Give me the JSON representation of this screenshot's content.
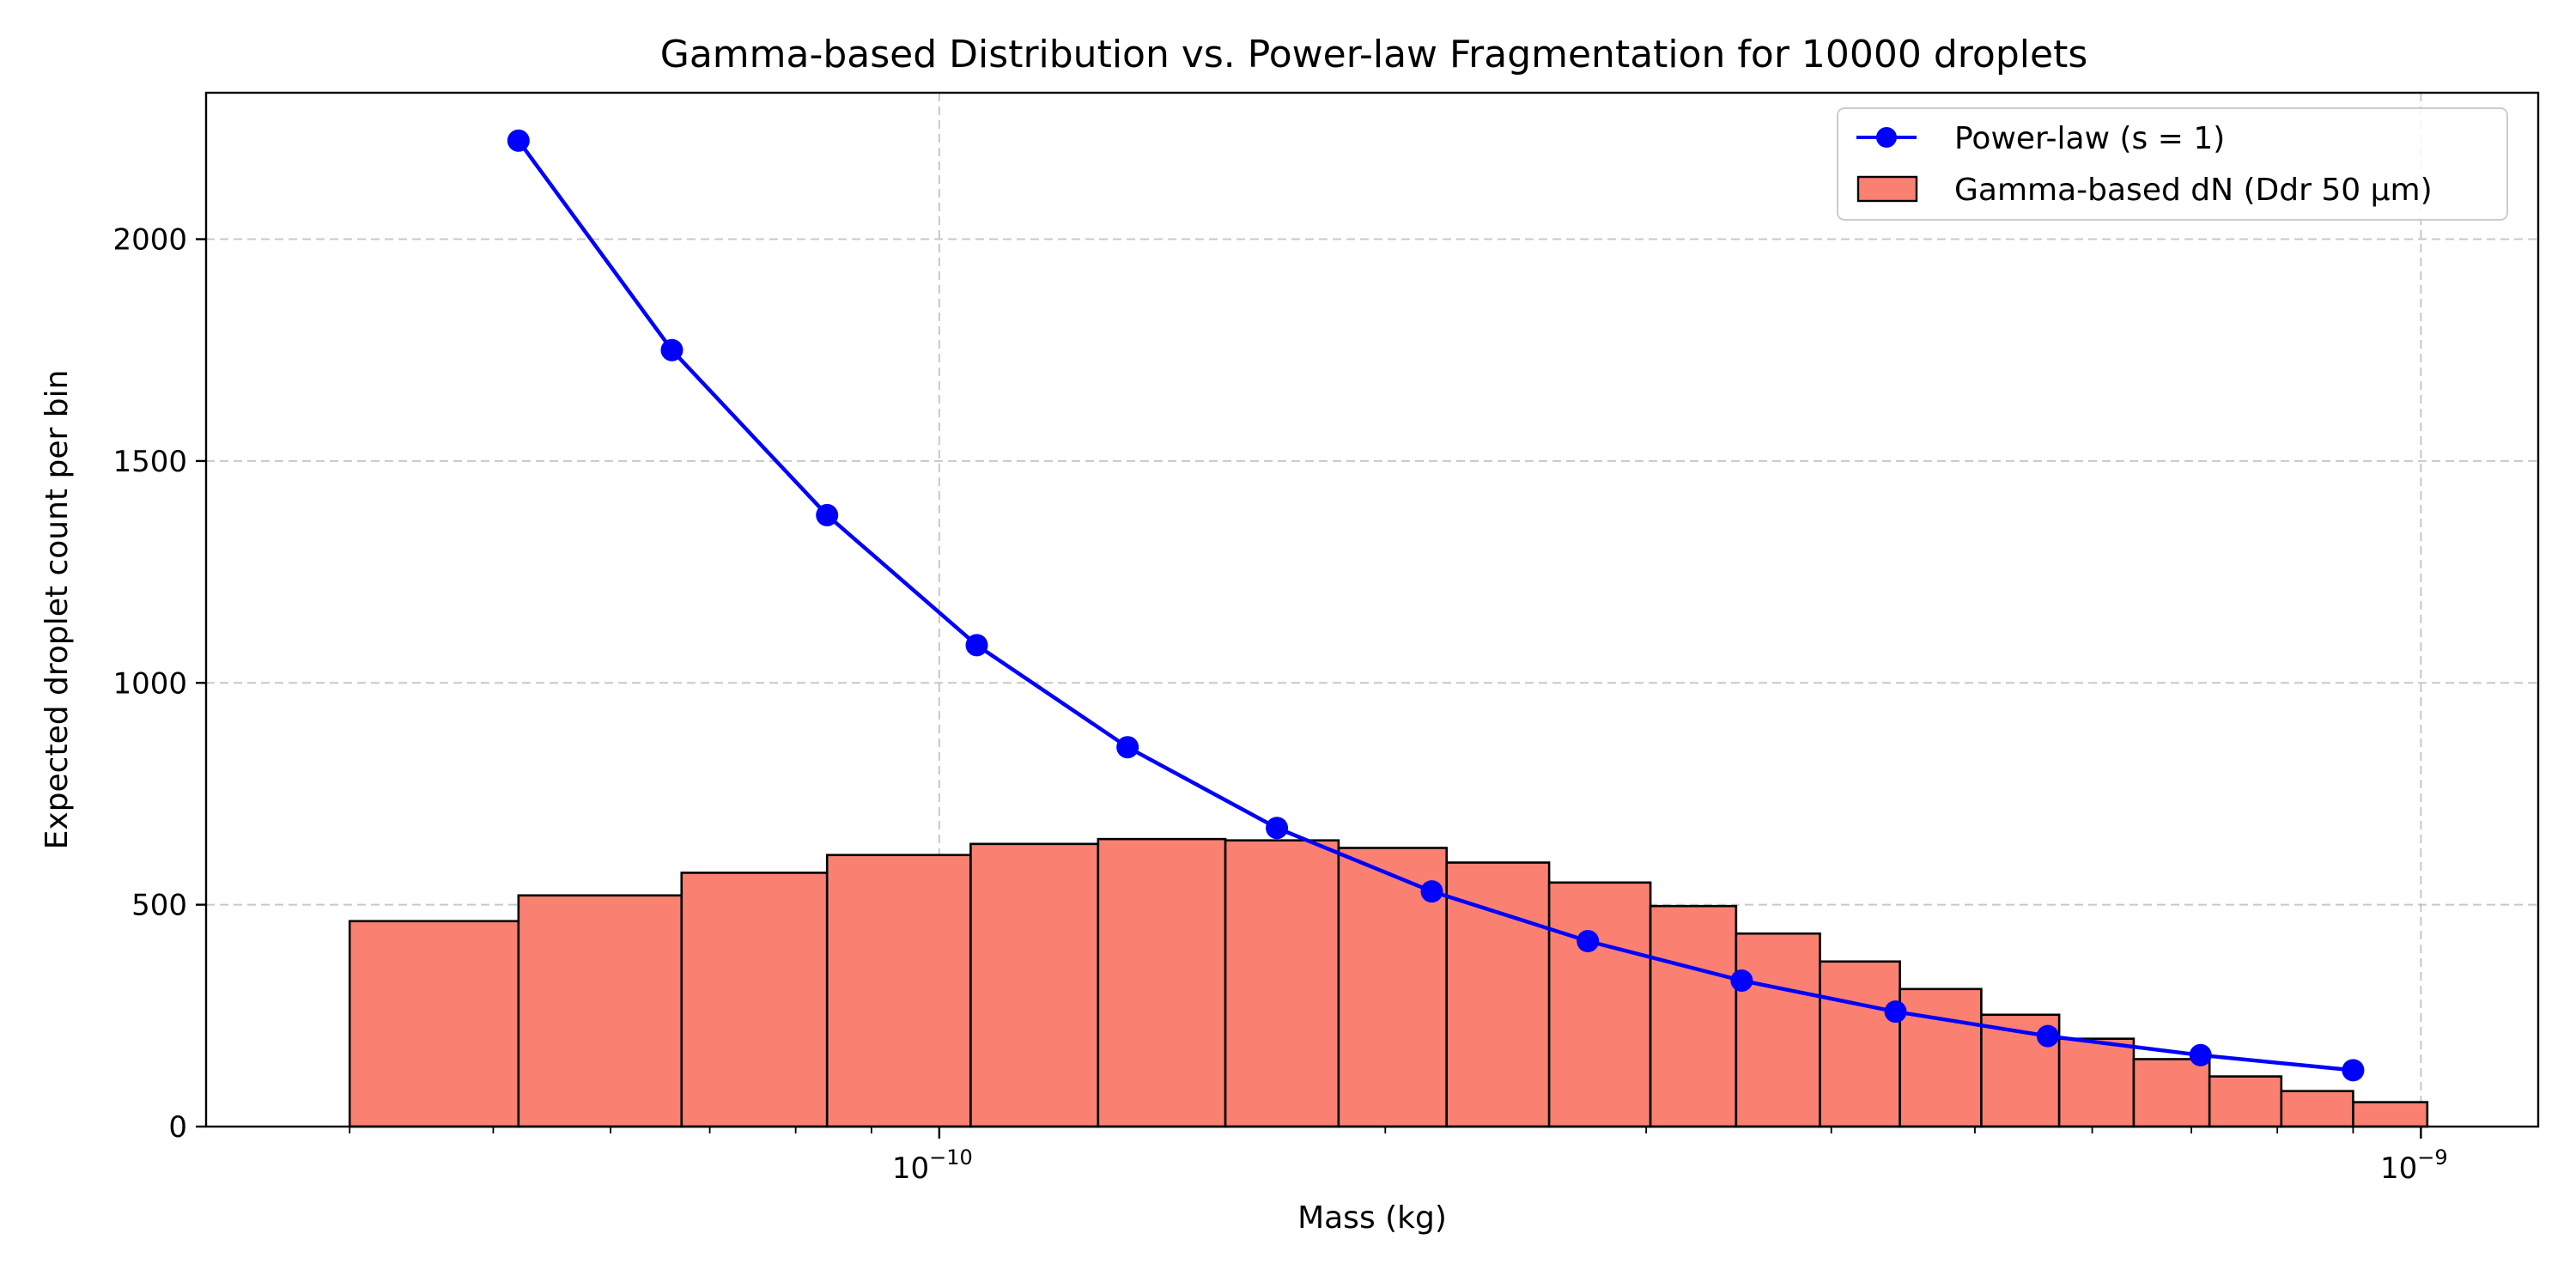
{
  "chart_data": {
    "type": "bar",
    "title": "Gamma-based Distribution vs. Power-law Fragmentation for 10000 droplets",
    "xlabel": "Mass (kg)",
    "ylabel": "Expected droplet count per bin",
    "x_scale": "log",
    "xlim": [
      3.2e-11,
      1.2e-09
    ],
    "ylim": [
      0,
      2330
    ],
    "grid": true,
    "legend_position": "top-right",
    "y_ticks": [
      0,
      500,
      1000,
      1500,
      2000
    ],
    "x_ticks": [
      {
        "value": 1e-10,
        "mantissa": "10",
        "exponent": "−10"
      },
      {
        "value": 1e-09,
        "mantissa": "10",
        "exponent": "−9"
      }
    ],
    "series": [
      {
        "name": "Gamma-based dN (Ddr 50 µm)",
        "kind": "histogram",
        "color": "#fa8072",
        "edge_color": "#000000",
        "bin_edges": [
          4e-11,
          5.2e-11,
          6.7e-11,
          8.4e-11,
          1.05e-10,
          1.28e-10,
          1.56e-10,
          1.86e-10,
          2.2e-10,
          2.58e-10,
          3.02e-10,
          3.45e-10,
          3.93e-10,
          4.45e-10,
          5.05e-10,
          5.7e-10,
          6.4e-10,
          7.2e-10,
          8.05e-10,
          9e-10,
          1.01e-09
        ],
        "values": [
          463,
          521,
          572,
          612,
          637,
          648,
          645,
          628,
          595,
          550,
          497,
          435,
          372,
          310,
          252,
          198,
          152,
          113,
          80,
          55
        ]
      },
      {
        "name": "Power-law (s = 1)",
        "kind": "line",
        "color": "#0000ff",
        "x": [
          5.2e-11,
          6.6e-11,
          8.4e-11,
          1.06e-10,
          1.34e-10,
          1.69e-10,
          2.15e-10,
          2.74e-10,
          3.48e-10,
          4.42e-10,
          5.6e-10,
          7.1e-10,
          9e-10
        ],
        "y": [
          2222,
          1750,
          1378,
          1085,
          855,
          673,
          530,
          418,
          329,
          259,
          204,
          161,
          127
        ]
      }
    ]
  }
}
